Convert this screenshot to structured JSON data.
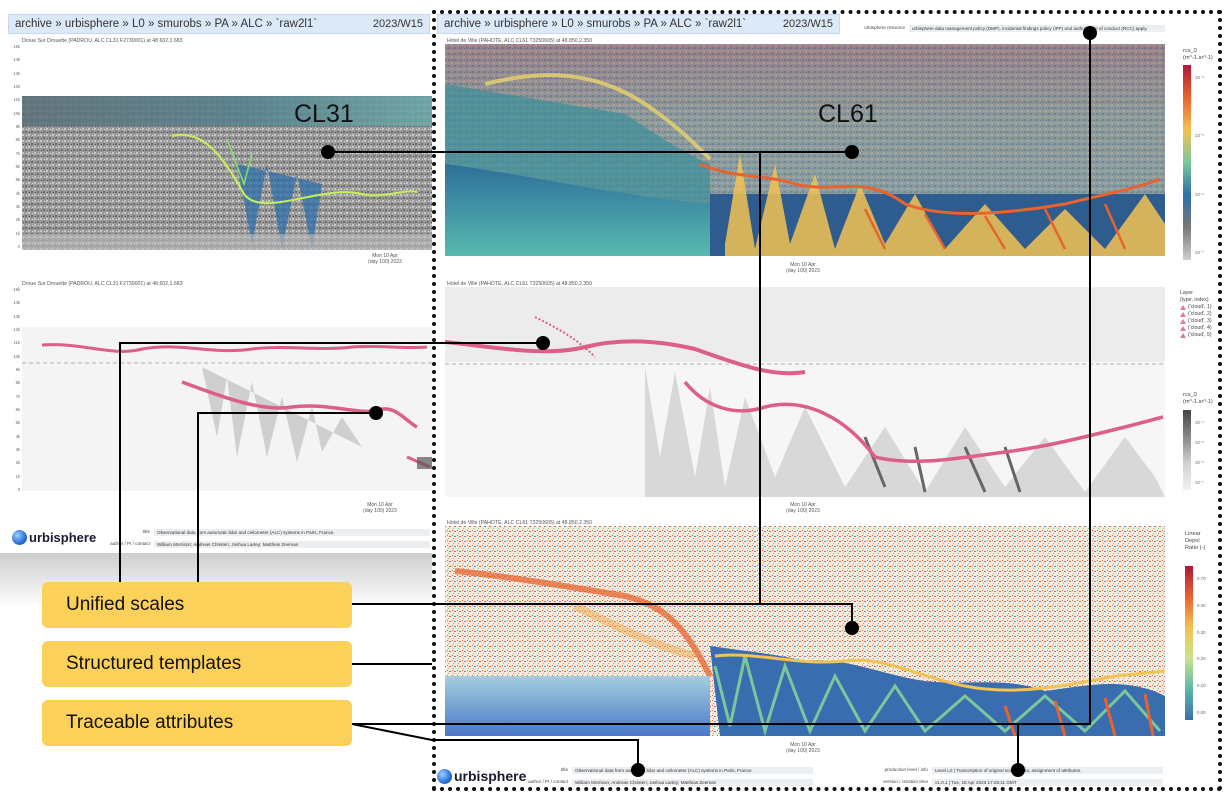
{
  "left": {
    "header_path": "archive » urbisphere » L0 » smurobs » PA » ALC » `raw2l1`",
    "header_week": "2023/W15",
    "panel1_title": "Droue Sur Drouette (PADROU, ALC CL31 F2730001) at 48.602,1.683",
    "panel2_title": "Droue Sur Drouette (PADROU, ALC CL31 F2730001) at 48.602,1.683",
    "y_ticks": [
      "15k",
      "14k",
      "13k",
      "12k",
      "11k",
      "10k",
      "9k",
      "8k",
      "7k",
      "6k",
      "5k",
      "4k",
      "3k",
      "2k",
      "1k",
      "0"
    ],
    "xlabel": "Mon 10 Apr\n(day 100) 2023",
    "footer_title_key": "title",
    "footer_title_val": "Observational data from automatic lidar and ceilometer (ALC) systems in Paris, France.",
    "footer_author_key": "author / PI / contact",
    "footer_author_val": "William Morrison; Andreas Christen; Joshua Lartey; Matthias Zeeman"
  },
  "right": {
    "header_path": "archive » urbisphere » L0 » smurobs » PA » ALC » `raw2l1`",
    "header_week": "2023/W15",
    "resource_key": "urbisphere resource",
    "resource_val": "urbisphere data management policy (DMP), incidental findings policy (IFP) and author code of conduct (RCC) apply.",
    "panel1_title": "Hotel de Ville (PAHOTE, ALC CL61 T3250605) at 48.850,2.350",
    "panel2_title": "Hotel de Ville (PAHOTE, ALC CL61 T3250605) at 48.850,2.350",
    "panel3_title": "Hotel de Ville (PAHOTE, ALC CL61 T3250605) at 48.850,2.350",
    "xlabel": "Mon 10 Apr\n(day 100) 2023",
    "cbar1_title": "rcs_0\n(m^-1.sr^-1)",
    "cbar1_ticks": [
      "10⁻⁴",
      "10⁻⁵",
      "10⁻⁶",
      "10⁻⁷"
    ],
    "layer_title": "Layer\n(type, index)",
    "layer_items": [
      "('cloud', 1)",
      "('cloud', 2)",
      "('cloud', 3)",
      "('cloud', 4)",
      "('cloud', 5)"
    ],
    "cbar2_title": "rcs_0\n(m^-1.sr^-1)",
    "cbar2_ticks": [
      "10⁻⁴",
      "10⁻⁵",
      "10⁻⁶",
      "10⁻⁷"
    ],
    "cbar3_title": "Linear\nDepol\nRatio (-)",
    "cbar3_ticks": [
      "0.70",
      "0.40",
      "0.30",
      "0.20",
      "0.10",
      "0.00"
    ],
    "footer_title_key": "title",
    "footer_title_val": "Observational data from automatic lidar and ceilometer (ALC) systems in Paris, France.",
    "footer_author_key": "author / PI / contact",
    "footer_author_val": "William Morrison; Andreas Christen; Joshua Lartey; Matthias Zeeman",
    "footer_level_key": "production level / info",
    "footer_level_val": "Level L0 | Transcription of original source data, assignment of attributes.",
    "footer_version_key": "version / creation time",
    "footer_version_val": "v1.0.1 | Tue, 18 Apr 2023 17:26:11 GMT"
  },
  "logo_text": "urbisphere",
  "labels": {
    "cl31": "CL31",
    "cl61": "CL61"
  },
  "callouts": {
    "unified": "Unified scales",
    "structured": "Structured templates",
    "traceable": "Traceable attributes"
  },
  "colors": {
    "callout": "#fcd15a",
    "header": "#dbe9f8",
    "cloud_layer": "#e07a9a",
    "dashed_border": "#111111"
  }
}
